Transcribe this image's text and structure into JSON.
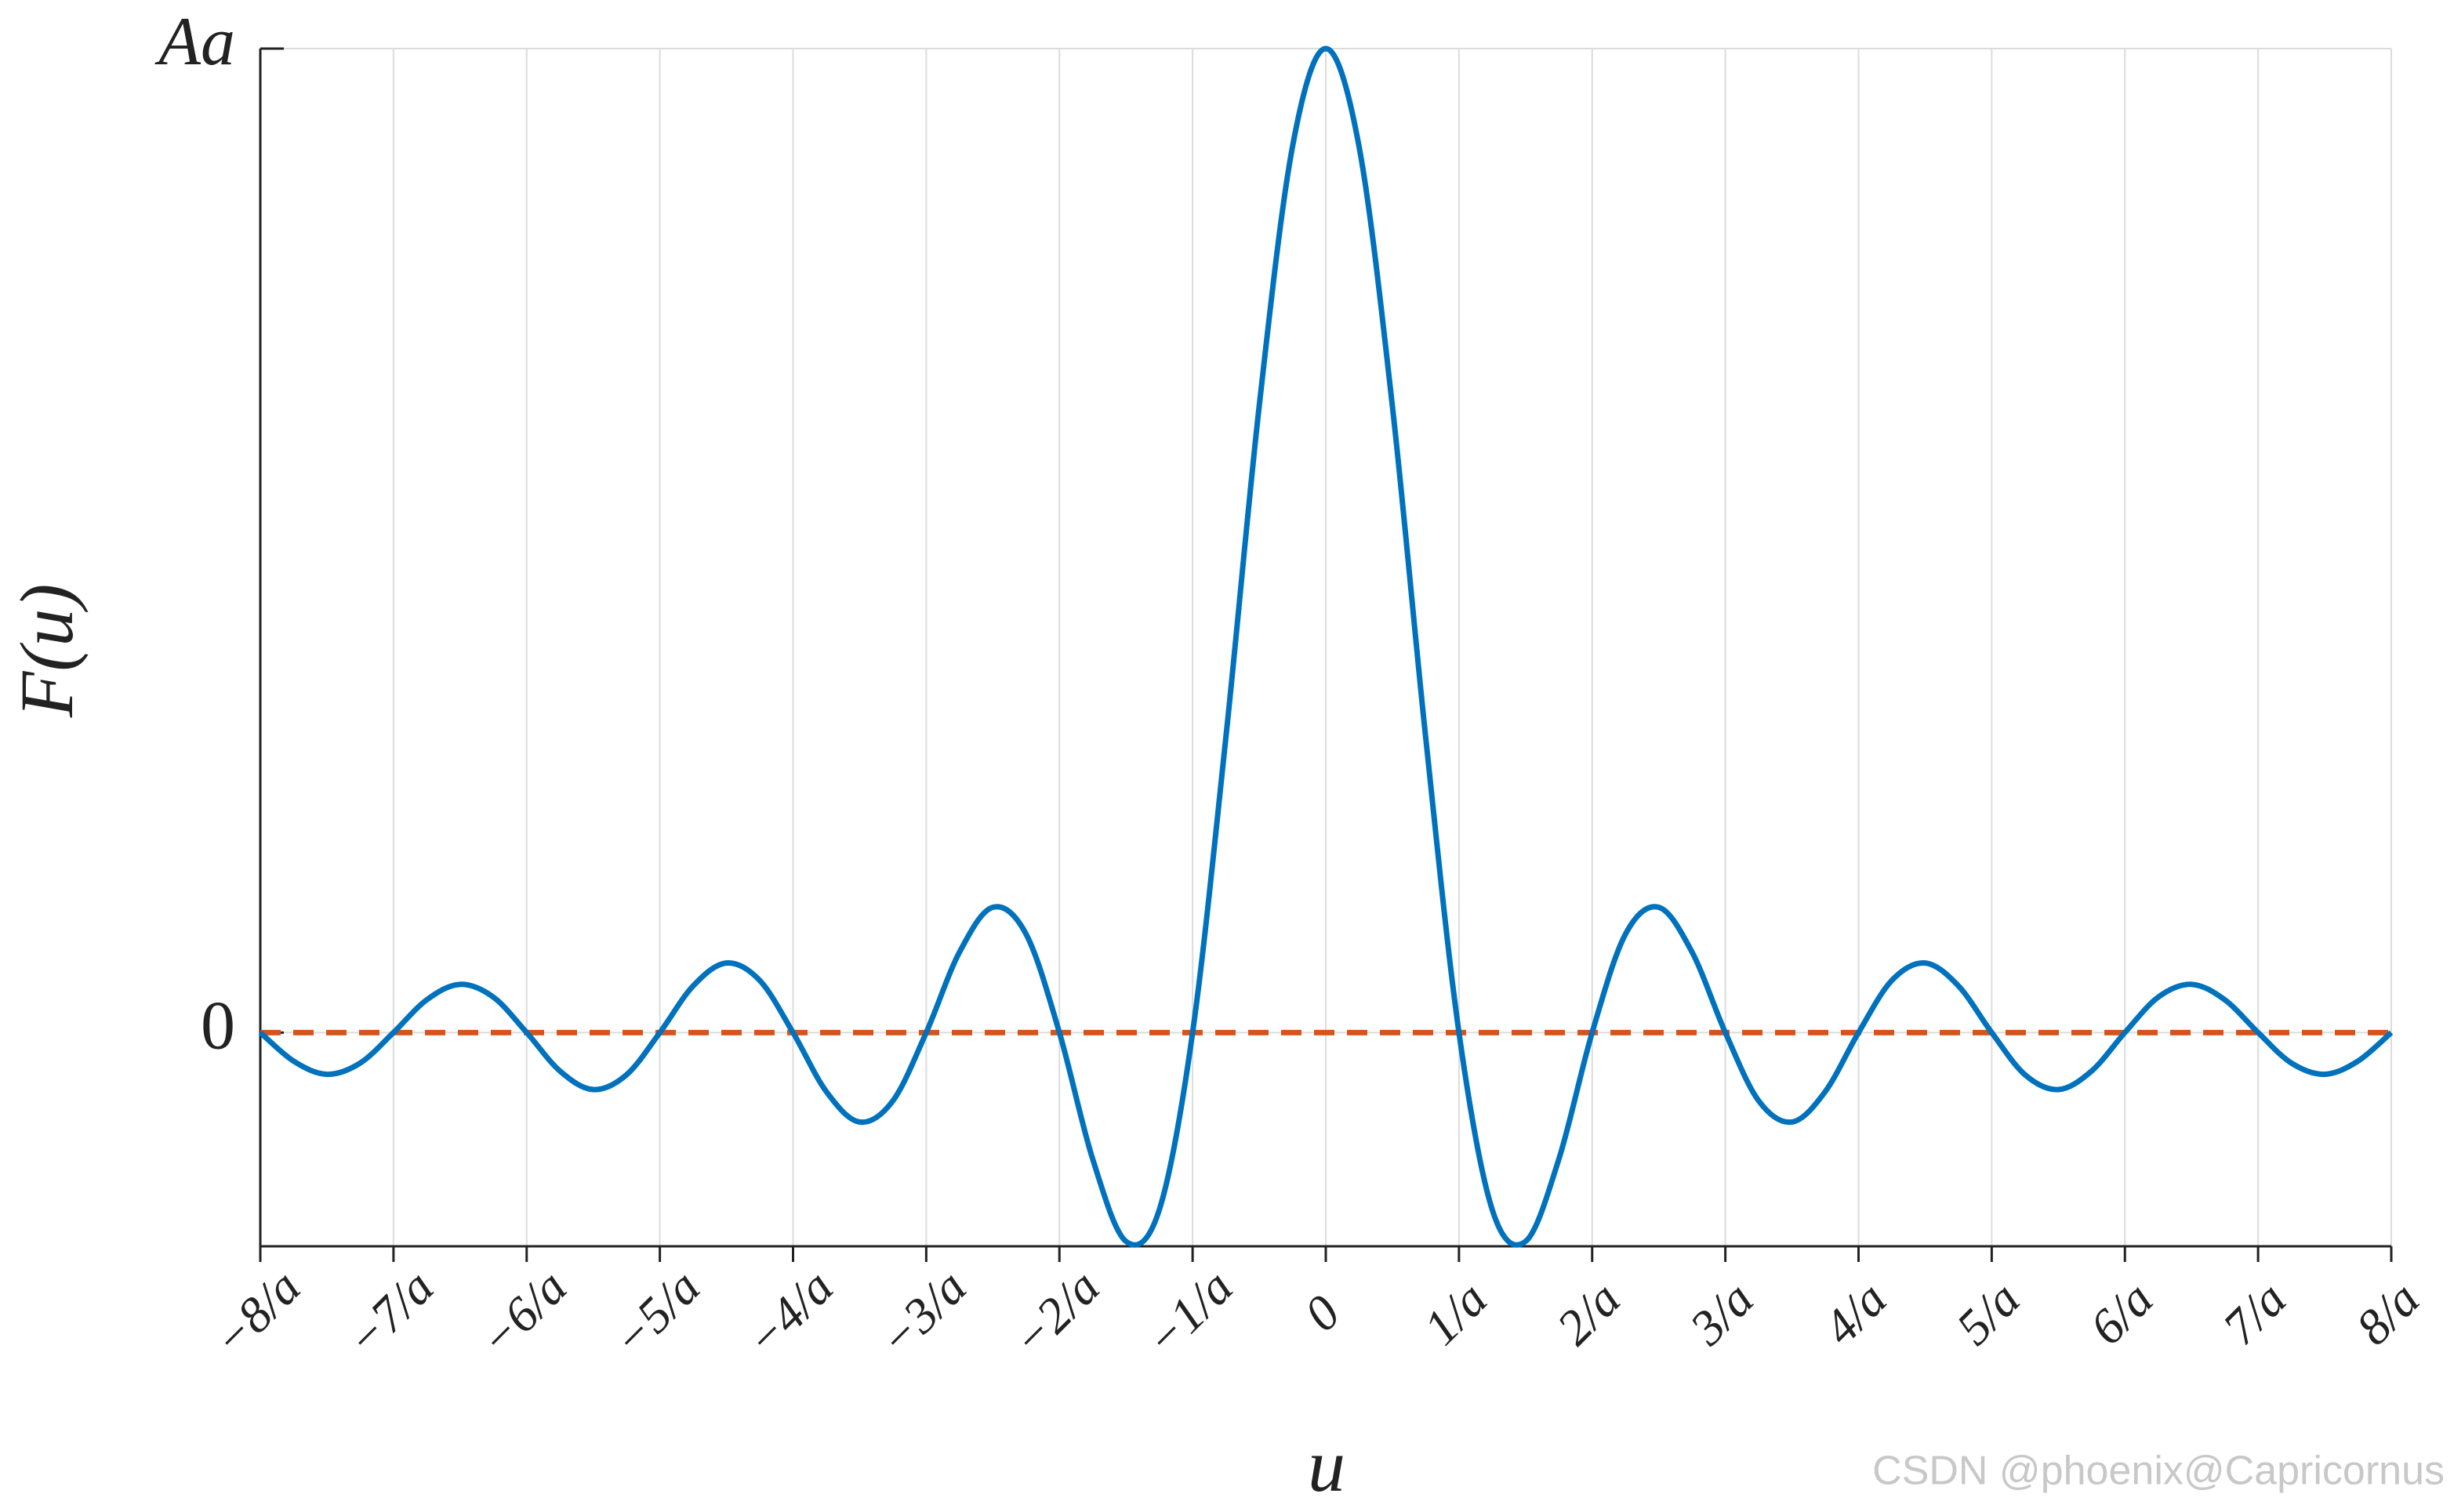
{
  "chart_data": {
    "type": "line",
    "x_label": "u",
    "y_label": "F(u)",
    "x": [
      -8,
      -7.75,
      -7.5,
      -7.25,
      -7,
      -6.75,
      -6.5,
      -6.25,
      -6,
      -5.75,
      -5.5,
      -5.25,
      -5,
      -4.75,
      -4.5,
      -4.25,
      -4,
      -3.75,
      -3.5,
      -3.25,
      -3,
      -2.75,
      -2.5,
      -2.25,
      -2,
      -1.75,
      -1.5,
      -1.25,
      -1,
      -0.75,
      -0.5,
      -0.25,
      0,
      0.25,
      0.5,
      0.75,
      1,
      1.25,
      1.5,
      1.75,
      2,
      2.25,
      2.5,
      2.75,
      3,
      3.25,
      3.5,
      3.75,
      4,
      4.25,
      4.5,
      4.75,
      5,
      5.25,
      5.5,
      5.75,
      6,
      6.25,
      6.5,
      6.75,
      7,
      7.25,
      7.5,
      7.75,
      8
    ],
    "series": [
      {
        "color": "#0072bd",
        "values": [
          0,
          -0.029,
          -0.0424,
          -0.031,
          0,
          0.0333,
          0.049,
          0.036,
          0,
          -0.0391,
          -0.0579,
          -0.0429,
          0,
          0.0474,
          0.0707,
          0.053,
          0,
          -0.06,
          -0.0909,
          -0.0693,
          0,
          0.0818,
          0.1273,
          0.1,
          0,
          -0.1286,
          -0.2122,
          -0.1801,
          0,
          0.3001,
          0.6366,
          0.9003,
          1,
          0.9003,
          0.6366,
          0.3001,
          0,
          -0.1801,
          -0.2122,
          -0.1286,
          0,
          0.1,
          0.1273,
          0.0818,
          0,
          -0.0693,
          -0.0909,
          -0.06,
          0,
          0.053,
          0.0707,
          0.0474,
          0,
          -0.0429,
          -0.0579,
          -0.0391,
          0,
          0.036,
          0.049,
          0.0333,
          0,
          -0.031,
          -0.0424,
          -0.029,
          0
        ]
      }
    ],
    "reference_line": {
      "y": 0,
      "color": "#d95319",
      "style": "dashed"
    },
    "xlim": [
      -8,
      8
    ],
    "xticks": [
      {
        "value": -8,
        "label": "−8/a"
      },
      {
        "value": -7,
        "label": "−7/a"
      },
      {
        "value": -6,
        "label": "−6/a"
      },
      {
        "value": -5,
        "label": "−5/a"
      },
      {
        "value": -4,
        "label": "−4/a"
      },
      {
        "value": -3,
        "label": "−3/a"
      },
      {
        "value": -2,
        "label": "−2/a"
      },
      {
        "value": -1,
        "label": "−1/a"
      },
      0,
      {
        "value": 1,
        "label": "1/a"
      },
      {
        "value": 2,
        "label": "2/a"
      },
      {
        "value": 3,
        "label": "3/a"
      },
      {
        "value": 4,
        "label": "4/a"
      },
      {
        "value": 5,
        "label": "5/a"
      },
      {
        "value": 6,
        "label": "6/a"
      },
      {
        "value": 7,
        "label": "7/a"
      },
      {
        "value": 8,
        "label": "8/a"
      }
    ],
    "ylim": [
      -0.2172,
      1
    ],
    "yticks": [
      0,
      {
        "value": 1,
        "label": "Aa"
      }
    ],
    "grid": true,
    "watermark": "CSDN @phoenix@Capricornus"
  }
}
